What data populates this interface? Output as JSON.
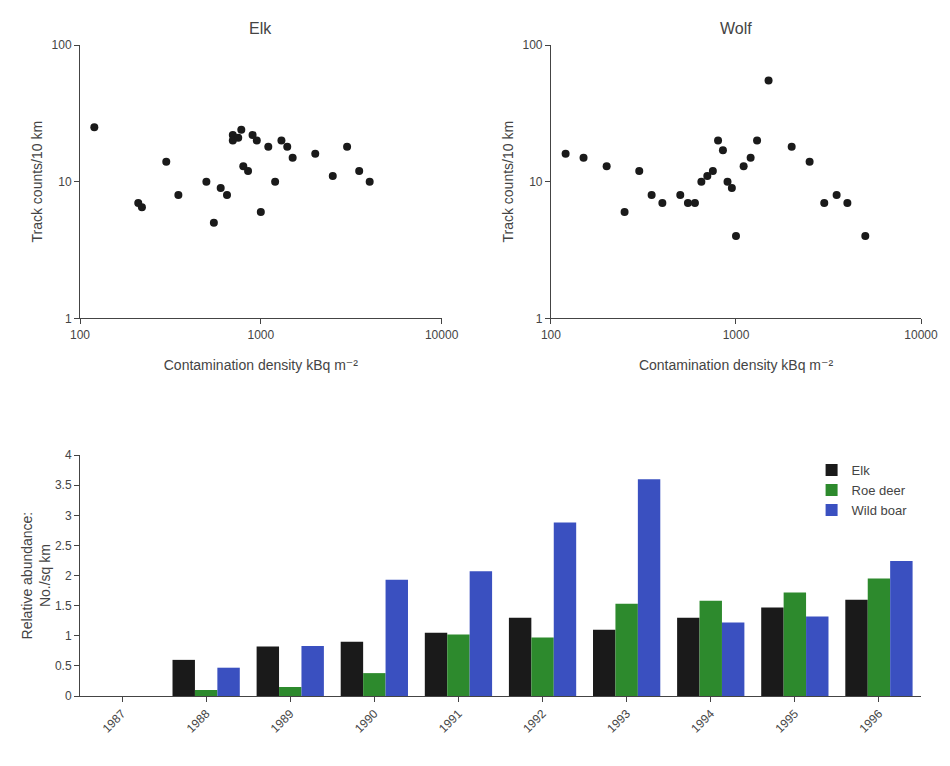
{
  "chart_data": [
    {
      "type": "scatter",
      "title": "Elk",
      "xlabel": "Contamination density kBq m⁻²",
      "ylabel": "Track counts/10 km",
      "x": [
        120,
        210,
        220,
        300,
        350,
        500,
        550,
        600,
        650,
        700,
        700,
        750,
        780,
        800,
        850,
        900,
        950,
        1000,
        1100,
        1200,
        1300,
        1400,
        1500,
        2000,
        2500,
        3000,
        3500,
        4000
      ],
      "values": [
        25,
        7,
        6.5,
        14,
        8,
        10,
        5,
        9,
        8,
        22,
        20,
        21,
        24,
        13,
        12,
        22,
        20,
        6,
        18,
        10,
        20,
        18,
        15,
        16,
        11,
        18,
        12,
        10
      ],
      "color": "#1a1a1a",
      "log": true,
      "xlim": [
        100,
        10000
      ],
      "xticks": [
        100,
        1000,
        10000
      ],
      "ylim": [
        1,
        100
      ],
      "yticks": [
        1,
        10,
        100
      ],
      "grid": false
    },
    {
      "type": "scatter",
      "title": "Wolf",
      "xlabel": "Contamination density kBq m⁻²",
      "ylabel": "Track counts/10 km",
      "x": [
        120,
        150,
        200,
        250,
        300,
        350,
        400,
        500,
        550,
        600,
        650,
        700,
        750,
        800,
        850,
        900,
        950,
        1000,
        1100,
        1200,
        1300,
        1500,
        2000,
        2500,
        3000,
        3500,
        4000,
        5000
      ],
      "values": [
        16,
        15,
        13,
        6,
        12,
        8,
        7,
        8,
        7,
        7,
        10,
        11,
        12,
        20,
        17,
        10,
        9,
        4,
        13,
        15,
        20,
        55,
        18,
        14,
        7,
        8,
        7,
        4
      ],
      "color": "#1a1a1a",
      "log": true,
      "xlim": [
        100,
        10000
      ],
      "xticks": [
        100,
        1000,
        10000
      ],
      "ylim": [
        1,
        100
      ],
      "yticks": [
        1,
        10,
        100
      ],
      "grid": false
    },
    {
      "type": "bar",
      "ylabel": "Relative abundance:\nNo./sq km",
      "categories": [
        "1987",
        "1988",
        "1989",
        "1990",
        "1991",
        "1992",
        "1993",
        "1994",
        "1995",
        "1996"
      ],
      "series": [
        {
          "name": "Elk",
          "color": "#1a1a1a",
          "values": [
            0.0,
            0.6,
            0.82,
            0.9,
            1.05,
            1.3,
            1.1,
            1.3,
            1.47,
            1.6
          ]
        },
        {
          "name": "Roe deer",
          "color": "#2d8a2d",
          "values": [
            0.0,
            0.1,
            0.15,
            0.38,
            1.02,
            0.97,
            1.53,
            1.58,
            1.72,
            1.95
          ]
        },
        {
          "name": "Wild boar",
          "color": "#3a50c0",
          "values": [
            0.0,
            0.47,
            0.83,
            1.93,
            2.07,
            2.88,
            3.6,
            1.22,
            1.32,
            2.24
          ]
        }
      ],
      "ylim": [
        0,
        4
      ],
      "yticks": [
        0,
        0.5,
        1,
        1.5,
        2,
        2.5,
        3,
        3.5,
        4
      ],
      "legend": "upper right",
      "grid": false
    }
  ]
}
